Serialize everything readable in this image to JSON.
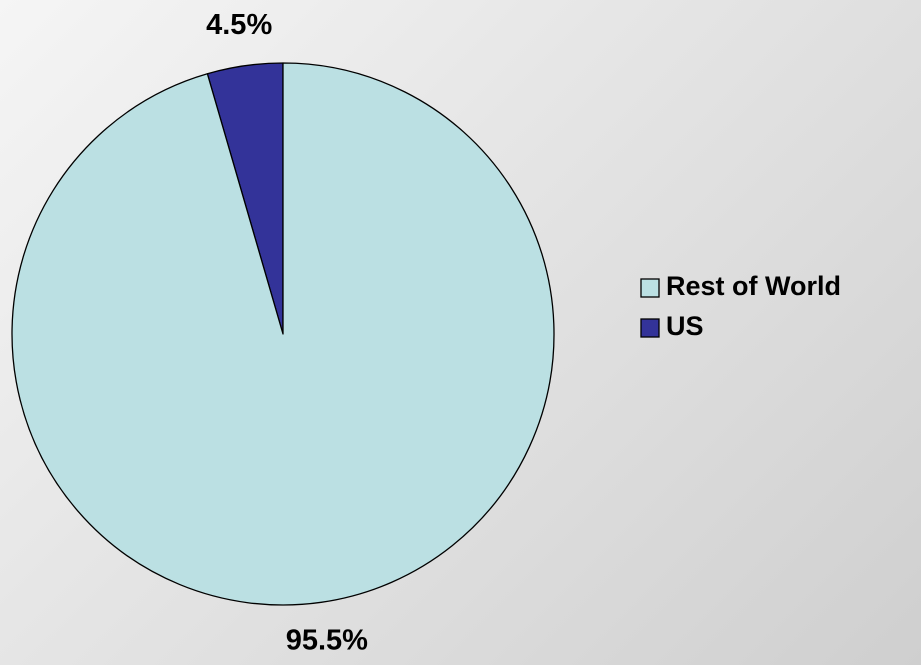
{
  "chart_data": {
    "type": "pie",
    "title": "",
    "slices": [
      {
        "label": "US",
        "value": 4.5,
        "display": "4.5%",
        "color": "#333399"
      },
      {
        "label": "Rest of World",
        "value": 95.5,
        "display": "95.5%",
        "color": "#bbe0e3"
      }
    ],
    "legend": {
      "position": "right",
      "entries": [
        {
          "label": "Rest of World",
          "color": "#bbe0e3"
        },
        {
          "label": "US",
          "color": "#333399"
        }
      ]
    },
    "start_angle": "12 o'clock",
    "direction": "counterclockwise"
  }
}
